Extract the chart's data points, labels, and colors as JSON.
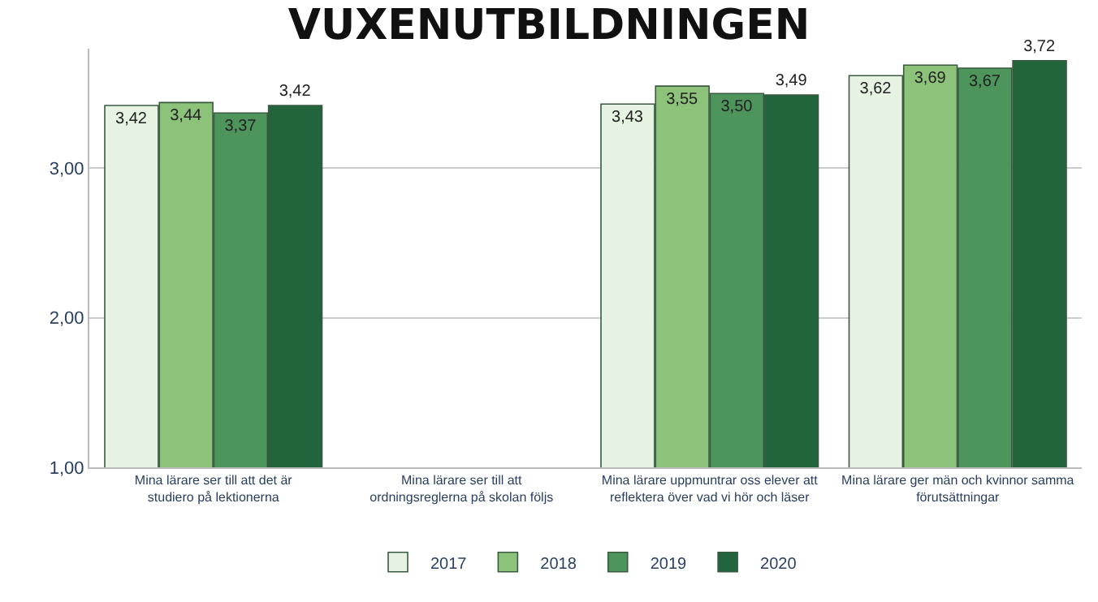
{
  "chart_data": {
    "type": "bar",
    "title": "VUXENUTBILDNINGEN",
    "categories": [
      "Mina lärare ser till att det är studiero på lektionerna",
      "Mina lärare ser till att ordningsreglerna på skolan följs",
      "Mina lärare uppmuntrar oss elever att reflektera över vad vi hör och läser",
      "Mina lärare ger män och kvinnor samma förutsättningar"
    ],
    "series": [
      {
        "name": "2017",
        "color": "#e6f2e2",
        "values": [
          3.42,
          null,
          3.43,
          3.62
        ],
        "value_labels": [
          "3,42",
          null,
          "3,43",
          "3,62"
        ]
      },
      {
        "name": "2018",
        "color": "#8dc27a",
        "values": [
          3.44,
          null,
          3.55,
          3.69
        ],
        "value_labels": [
          "3,44",
          null,
          "3,55",
          "3,69"
        ]
      },
      {
        "name": "2019",
        "color": "#4e955c",
        "values": [
          3.37,
          null,
          3.5,
          3.67
        ],
        "value_labels": [
          "3,37",
          null,
          "3,50",
          "3,67"
        ]
      },
      {
        "name": "2020",
        "color": "#22643c",
        "values": [
          3.42,
          null,
          3.49,
          3.72
        ],
        "value_labels": [
          "3,42",
          null,
          "3,49",
          "3,72"
        ]
      }
    ],
    "ylim": [
      1,
      3.8
    ],
    "yticks": [
      {
        "value": 1,
        "label": "1,00"
      },
      {
        "value": 2,
        "label": "2,00"
      },
      {
        "value": 3,
        "label": "3,00"
      }
    ],
    "grid": "y",
    "legend": "bottom"
  }
}
